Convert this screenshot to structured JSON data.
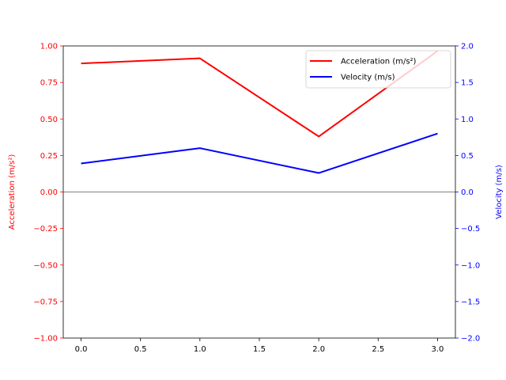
{
  "chart_data": {
    "type": "line",
    "x": [
      0,
      1,
      2,
      3
    ],
    "xlim": [
      -0.15,
      3.15
    ],
    "x_ticks": [
      "0.0",
      "0.5",
      "1.0",
      "1.5",
      "2.0",
      "2.5",
      "3.0"
    ],
    "grid": false,
    "legend_position": "top-right",
    "zero_line": true,
    "left_axis": {
      "label": "Acceleration (m/s²)",
      "color": "#ff0000",
      "ylim": [
        -1.0,
        1.0
      ],
      "ticks": [
        "1.00",
        "0.75",
        "0.50",
        "0.25",
        "0.00",
        "−0.25",
        "−0.50",
        "−0.75",
        "−1.00"
      ]
    },
    "right_axis": {
      "label": "Velocity (m/s)",
      "color": "#0000ff",
      "ylim": [
        -2.0,
        2.0
      ],
      "ticks": [
        "2.0",
        "1.5",
        "1.0",
        "0.5",
        "0.0",
        "−0.5",
        "−1.0",
        "−1.5",
        "−2.0"
      ]
    },
    "series": [
      {
        "name": "Acceleration (m/s²)",
        "axis": "left",
        "color": "#ff0000",
        "values": [
          0.88,
          0.915,
          0.38,
          0.965
        ]
      },
      {
        "name": "Velocity (m/s)",
        "axis": "right",
        "color": "#0000ff",
        "values": [
          0.39,
          0.6,
          0.26,
          0.8
        ]
      }
    ]
  }
}
